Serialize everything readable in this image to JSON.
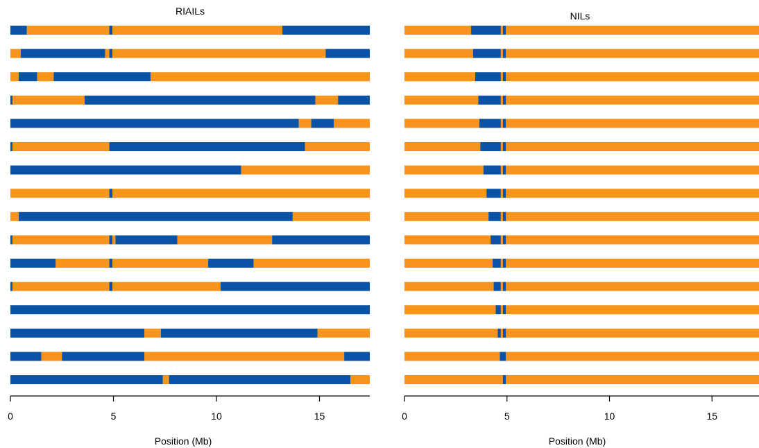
{
  "chart_data": [
    {
      "type": "bar",
      "title": "RIAILs",
      "xlabel": "Position (Mb)",
      "ylabel": "",
      "xlim": [
        0,
        17.5
      ],
      "xticks": [
        0,
        5,
        10,
        15
      ],
      "grid": false,
      "colors": {
        "orange": "#F7941D",
        "blue": "#0A52A5"
      },
      "strains": [
        [
          [
            "blue",
            0,
            0.8
          ],
          [
            "orange",
            0.8,
            4.8
          ],
          [
            "blue",
            4.8,
            4.95
          ],
          [
            "orange",
            4.95,
            13.2
          ],
          [
            "blue",
            13.2,
            17.5
          ]
        ],
        [
          [
            "orange",
            0,
            0.5
          ],
          [
            "blue",
            0.5,
            4.6
          ],
          [
            "orange",
            4.6,
            4.8
          ],
          [
            "blue",
            4.8,
            4.95
          ],
          [
            "orange",
            4.95,
            15.3
          ],
          [
            "blue",
            15.3,
            17.5
          ]
        ],
        [
          [
            "orange",
            0,
            0.4
          ],
          [
            "blue",
            0.4,
            1.3
          ],
          [
            "orange",
            1.3,
            2.1
          ],
          [
            "blue",
            2.1,
            6.8
          ],
          [
            "orange",
            6.8,
            17.5
          ]
        ],
        [
          [
            "blue",
            0,
            0.1
          ],
          [
            "orange",
            0.1,
            3.6
          ],
          [
            "blue",
            3.6,
            14.8
          ],
          [
            "orange",
            14.8,
            15.9
          ],
          [
            "blue",
            15.9,
            17.5
          ]
        ],
        [
          [
            "blue",
            0,
            14
          ],
          [
            "orange",
            14,
            14.6
          ],
          [
            "blue",
            14.6,
            15.7
          ],
          [
            "orange",
            15.7,
            17.5
          ]
        ],
        [
          [
            "blue",
            0,
            0.1
          ],
          [
            "orange",
            0.1,
            4.8
          ],
          [
            "blue",
            4.8,
            14.3
          ],
          [
            "orange",
            14.3,
            17.5
          ]
        ],
        [
          [
            "blue",
            0,
            11.2
          ],
          [
            "orange",
            11.2,
            17.5
          ]
        ],
        [
          [
            "orange",
            0,
            4.8
          ],
          [
            "blue",
            4.8,
            4.95
          ],
          [
            "orange",
            4.95,
            17.5
          ]
        ],
        [
          [
            "orange",
            0,
            0.4
          ],
          [
            "blue",
            0.4,
            13.7
          ],
          [
            "orange",
            13.7,
            17.5
          ]
        ],
        [
          [
            "blue",
            0,
            0.1
          ],
          [
            "orange",
            0.1,
            4.8
          ],
          [
            "blue",
            4.8,
            4.95
          ],
          [
            "orange",
            4.95,
            5.1
          ],
          [
            "blue",
            5.1,
            8.1
          ],
          [
            "orange",
            8.1,
            12.7
          ],
          [
            "blue",
            12.7,
            17.5
          ]
        ],
        [
          [
            "blue",
            0,
            2.2
          ],
          [
            "orange",
            2.2,
            4.8
          ],
          [
            "blue",
            4.8,
            4.95
          ],
          [
            "orange",
            4.95,
            9.6
          ],
          [
            "blue",
            9.6,
            11.8
          ],
          [
            "orange",
            11.8,
            17.5
          ]
        ],
        [
          [
            "blue",
            0,
            0.1
          ],
          [
            "orange",
            0.1,
            4.8
          ],
          [
            "blue",
            4.8,
            4.95
          ],
          [
            "orange",
            4.95,
            10.2
          ],
          [
            "blue",
            10.2,
            17.5
          ]
        ],
        [
          [
            "blue",
            0,
            17.5
          ]
        ],
        [
          [
            "blue",
            0,
            6.5
          ],
          [
            "orange",
            6.5,
            7.3
          ],
          [
            "blue",
            7.3,
            14.9
          ],
          [
            "orange",
            14.9,
            17.5
          ]
        ],
        [
          [
            "blue",
            0,
            1.5
          ],
          [
            "orange",
            1.5,
            2.5
          ],
          [
            "blue",
            2.5,
            6.5
          ],
          [
            "orange",
            6.5,
            16.2
          ],
          [
            "blue",
            16.2,
            17.5
          ]
        ],
        [
          [
            "blue",
            0,
            7.4
          ],
          [
            "orange",
            7.4,
            7.7
          ],
          [
            "blue",
            7.7,
            16.5
          ],
          [
            "orange",
            16.5,
            17.5
          ]
        ]
      ]
    },
    {
      "type": "bar",
      "title": "NILs",
      "xlabel": "Position (Mb)",
      "ylabel": "",
      "xlim": [
        0,
        17.3
      ],
      "xticks": [
        0,
        5,
        10,
        15
      ],
      "grid": false,
      "colors": {
        "orange": "#F7941D",
        "blue": "#0A52A5"
      },
      "strains": [
        [
          [
            "orange",
            0,
            3.25
          ],
          [
            "blue",
            3.25,
            4.7
          ],
          [
            "orange",
            4.7,
            4.8
          ],
          [
            "blue",
            4.8,
            4.95
          ],
          [
            "orange",
            4.95,
            17.3
          ]
        ],
        [
          [
            "orange",
            0,
            3.35
          ],
          [
            "blue",
            3.35,
            4.7
          ],
          [
            "orange",
            4.7,
            4.8
          ],
          [
            "blue",
            4.8,
            4.95
          ],
          [
            "orange",
            4.95,
            17.3
          ]
        ],
        [
          [
            "orange",
            0,
            3.45
          ],
          [
            "blue",
            3.45,
            4.7
          ],
          [
            "orange",
            4.7,
            4.8
          ],
          [
            "blue",
            4.8,
            4.95
          ],
          [
            "orange",
            4.95,
            17.3
          ]
        ],
        [
          [
            "orange",
            0,
            3.6
          ],
          [
            "blue",
            3.6,
            4.7
          ],
          [
            "orange",
            4.7,
            4.8
          ],
          [
            "blue",
            4.8,
            4.95
          ],
          [
            "orange",
            4.95,
            17.3
          ]
        ],
        [
          [
            "orange",
            0,
            3.65
          ],
          [
            "blue",
            3.65,
            4.7
          ],
          [
            "orange",
            4.7,
            4.8
          ],
          [
            "blue",
            4.8,
            4.95
          ],
          [
            "orange",
            4.95,
            17.3
          ]
        ],
        [
          [
            "orange",
            0,
            3.7
          ],
          [
            "blue",
            3.7,
            4.7
          ],
          [
            "orange",
            4.7,
            4.8
          ],
          [
            "blue",
            4.8,
            4.95
          ],
          [
            "orange",
            4.95,
            17.3
          ]
        ],
        [
          [
            "orange",
            0,
            3.85
          ],
          [
            "blue",
            3.85,
            4.7
          ],
          [
            "orange",
            4.7,
            4.8
          ],
          [
            "blue",
            4.8,
            4.95
          ],
          [
            "orange",
            4.95,
            17.3
          ]
        ],
        [
          [
            "orange",
            0,
            4.0
          ],
          [
            "blue",
            4.0,
            4.7
          ],
          [
            "orange",
            4.7,
            4.8
          ],
          [
            "blue",
            4.8,
            4.95
          ],
          [
            "orange",
            4.95,
            17.3
          ]
        ],
        [
          [
            "orange",
            0,
            4.1
          ],
          [
            "blue",
            4.1,
            4.7
          ],
          [
            "orange",
            4.7,
            4.8
          ],
          [
            "blue",
            4.8,
            4.95
          ],
          [
            "orange",
            4.95,
            17.3
          ]
        ],
        [
          [
            "orange",
            0,
            4.2
          ],
          [
            "blue",
            4.2,
            4.7
          ],
          [
            "orange",
            4.7,
            4.8
          ],
          [
            "blue",
            4.8,
            4.95
          ],
          [
            "orange",
            4.95,
            17.3
          ]
        ],
        [
          [
            "orange",
            0,
            4.3
          ],
          [
            "blue",
            4.3,
            4.7
          ],
          [
            "orange",
            4.7,
            4.8
          ],
          [
            "blue",
            4.8,
            4.95
          ],
          [
            "orange",
            4.95,
            17.3
          ]
        ],
        [
          [
            "orange",
            0,
            4.35
          ],
          [
            "blue",
            4.35,
            4.7
          ],
          [
            "orange",
            4.7,
            4.8
          ],
          [
            "blue",
            4.8,
            4.95
          ],
          [
            "orange",
            4.95,
            17.3
          ]
        ],
        [
          [
            "orange",
            0,
            4.45
          ],
          [
            "blue",
            4.45,
            4.7
          ],
          [
            "orange",
            4.7,
            4.8
          ],
          [
            "blue",
            4.8,
            4.95
          ],
          [
            "orange",
            4.95,
            17.3
          ]
        ],
        [
          [
            "orange",
            0,
            4.55
          ],
          [
            "blue",
            4.55,
            4.7
          ],
          [
            "orange",
            4.7,
            4.8
          ],
          [
            "blue",
            4.8,
            4.95
          ],
          [
            "orange",
            4.95,
            17.3
          ]
        ],
        [
          [
            "orange",
            0,
            4.65
          ],
          [
            "blue",
            4.65,
            4.95
          ],
          [
            "orange",
            4.95,
            17.3
          ]
        ],
        [
          [
            "orange",
            0,
            4.8
          ],
          [
            "blue",
            4.8,
            4.95
          ],
          [
            "orange",
            4.95,
            17.3
          ]
        ]
      ]
    }
  ]
}
